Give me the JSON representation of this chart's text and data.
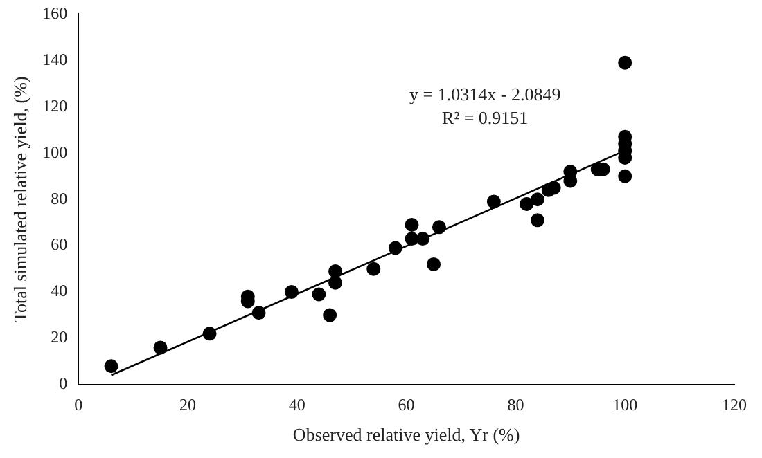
{
  "chart_data": {
    "type": "scatter",
    "xlabel": "Observed relative yield, Yr (%)",
    "ylabel": "Total simulated relative yield, (%)",
    "xlim": [
      0,
      120
    ],
    "xticks": [
      0,
      20,
      40,
      60,
      80,
      100,
      120
    ],
    "ylim": [
      0,
      160
    ],
    "yticks": [
      0,
      20,
      40,
      60,
      80,
      100,
      120,
      140,
      160
    ],
    "grid": false,
    "legend": false,
    "marker": "circle",
    "series": [
      {
        "color": "#000000",
        "x": [
          6,
          15,
          24,
          31,
          31,
          33,
          39,
          44,
          46,
          47,
          47,
          54,
          58,
          61,
          61,
          63,
          65,
          66,
          76,
          82,
          84,
          84,
          86,
          87,
          90,
          90,
          95,
          96,
          100,
          100,
          100,
          100,
          100,
          100
        ],
        "values": [
          8,
          16,
          22,
          38,
          36,
          31,
          40,
          39,
          30,
          49,
          44,
          50,
          59,
          69,
          63,
          63,
          52,
          68,
          79,
          78,
          80,
          71,
          84,
          85,
          92,
          88,
          93,
          93,
          139,
          107,
          104,
          101,
          98,
          90
        ]
      },
      {
        "type": "line",
        "color": "#000000",
        "marker": "none",
        "x": [
          6,
          100
        ],
        "values": [
          4.1,
          101.1
        ]
      }
    ],
    "annotations": [
      "y = 1.0314x - 2.0849",
      "R² = 0.9151"
    ]
  }
}
